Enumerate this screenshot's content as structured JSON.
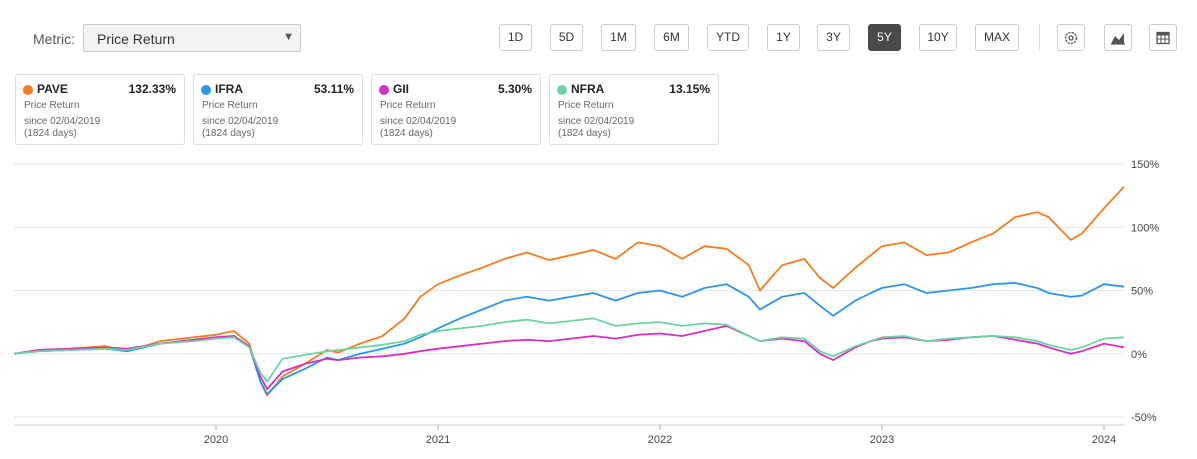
{
  "metric": {
    "label": "Metric:",
    "value": "Price Return"
  },
  "ranges": [
    "1D",
    "5D",
    "1M",
    "6M",
    "YTD",
    "1Y",
    "3Y",
    "5Y",
    "10Y",
    "MAX"
  ],
  "active_range": "5Y",
  "icons": [
    "gear-icon",
    "area-chart-icon",
    "table-icon"
  ],
  "legend": [
    {
      "ticker": "PAVE",
      "ret": "132.33%",
      "sub": "Price Return",
      "since": "since 02/04/2019",
      "days": "(1824 days)",
      "color": "#f57c1f"
    },
    {
      "ticker": "IFRA",
      "ret": "53.11%",
      "sub": "Price Return",
      "since": "since 02/04/2019",
      "days": "(1824 days)",
      "color": "#2b95e9"
    },
    {
      "ticker": "GII",
      "ret": "5.30%",
      "sub": "Price Return",
      "since": "since 02/04/2019",
      "days": "(1824 days)",
      "color": "#d630c4"
    },
    {
      "ticker": "NFRA",
      "ret": "13.15%",
      "sub": "Price Return",
      "since": "since 02/04/2019",
      "days": "(1824 days)",
      "color": "#6cd3a0"
    }
  ],
  "chart_data": {
    "type": "line",
    "ylim": [
      -50,
      150
    ],
    "yticks": [
      150,
      100,
      50,
      0,
      -50
    ],
    "ytick_labels": [
      "150%",
      "100%",
      "50%",
      "0%",
      "-50%"
    ],
    "xlim": [
      2019.09,
      2024.09
    ],
    "xticks": [
      2020,
      2021,
      2022,
      2023,
      2024
    ],
    "xtick_labels": [
      "2020",
      "2021",
      "2022",
      "2023",
      "2024"
    ],
    "grid": "horizontal",
    "series": [
      {
        "name": "PAVE",
        "color": "#f57c1f",
        "points": [
          [
            2019.09,
            0
          ],
          [
            2019.2,
            3
          ],
          [
            2019.35,
            4
          ],
          [
            2019.5,
            6
          ],
          [
            2019.6,
            2
          ],
          [
            2019.75,
            10
          ],
          [
            2019.9,
            13
          ],
          [
            2020.0,
            15
          ],
          [
            2020.08,
            18
          ],
          [
            2020.15,
            8
          ],
          [
            2020.2,
            -22
          ],
          [
            2020.23,
            -33
          ],
          [
            2020.3,
            -18
          ],
          [
            2020.4,
            -8
          ],
          [
            2020.5,
            3
          ],
          [
            2020.55,
            1
          ],
          [
            2020.65,
            8
          ],
          [
            2020.75,
            14
          ],
          [
            2020.85,
            28
          ],
          [
            2020.92,
            45
          ],
          [
            2021.0,
            55
          ],
          [
            2021.1,
            62
          ],
          [
            2021.2,
            68
          ],
          [
            2021.3,
            75
          ],
          [
            2021.4,
            80
          ],
          [
            2021.5,
            74
          ],
          [
            2021.6,
            78
          ],
          [
            2021.7,
            82
          ],
          [
            2021.8,
            75
          ],
          [
            2021.9,
            88
          ],
          [
            2022.0,
            85
          ],
          [
            2022.1,
            75
          ],
          [
            2022.2,
            85
          ],
          [
            2022.3,
            83
          ],
          [
            2022.4,
            70
          ],
          [
            2022.45,
            50
          ],
          [
            2022.55,
            70
          ],
          [
            2022.65,
            75
          ],
          [
            2022.72,
            60
          ],
          [
            2022.78,
            52
          ],
          [
            2022.88,
            68
          ],
          [
            2022.95,
            78
          ],
          [
            2023.0,
            85
          ],
          [
            2023.1,
            88
          ],
          [
            2023.2,
            78
          ],
          [
            2023.3,
            80
          ],
          [
            2023.4,
            88
          ],
          [
            2023.5,
            95
          ],
          [
            2023.6,
            108
          ],
          [
            2023.7,
            112
          ],
          [
            2023.75,
            108
          ],
          [
            2023.85,
            90
          ],
          [
            2023.9,
            95
          ],
          [
            2024.0,
            115
          ],
          [
            2024.09,
            132
          ]
        ]
      },
      {
        "name": "IFRA",
        "color": "#2b95e9",
        "points": [
          [
            2019.09,
            0
          ],
          [
            2019.2,
            2
          ],
          [
            2019.35,
            3
          ],
          [
            2019.5,
            4
          ],
          [
            2019.6,
            2
          ],
          [
            2019.75,
            8
          ],
          [
            2019.9,
            11
          ],
          [
            2020.0,
            13
          ],
          [
            2020.08,
            14
          ],
          [
            2020.15,
            6
          ],
          [
            2020.2,
            -22
          ],
          [
            2020.23,
            -32
          ],
          [
            2020.3,
            -20
          ],
          [
            2020.4,
            -12
          ],
          [
            2020.5,
            -3
          ],
          [
            2020.55,
            -5
          ],
          [
            2020.65,
            0
          ],
          [
            2020.75,
            4
          ],
          [
            2020.85,
            8
          ],
          [
            2020.92,
            13
          ],
          [
            2021.0,
            20
          ],
          [
            2021.1,
            28
          ],
          [
            2021.2,
            35
          ],
          [
            2021.3,
            42
          ],
          [
            2021.4,
            45
          ],
          [
            2021.5,
            42
          ],
          [
            2021.6,
            45
          ],
          [
            2021.7,
            48
          ],
          [
            2021.8,
            42
          ],
          [
            2021.9,
            48
          ],
          [
            2022.0,
            50
          ],
          [
            2022.1,
            45
          ],
          [
            2022.2,
            52
          ],
          [
            2022.3,
            55
          ],
          [
            2022.4,
            45
          ],
          [
            2022.45,
            35
          ],
          [
            2022.55,
            45
          ],
          [
            2022.65,
            48
          ],
          [
            2022.72,
            38
          ],
          [
            2022.78,
            30
          ],
          [
            2022.88,
            42
          ],
          [
            2022.95,
            48
          ],
          [
            2023.0,
            52
          ],
          [
            2023.1,
            55
          ],
          [
            2023.2,
            48
          ],
          [
            2023.3,
            50
          ],
          [
            2023.4,
            52
          ],
          [
            2023.5,
            55
          ],
          [
            2023.6,
            56
          ],
          [
            2023.7,
            52
          ],
          [
            2023.75,
            48
          ],
          [
            2023.85,
            45
          ],
          [
            2023.9,
            46
          ],
          [
            2024.0,
            55
          ],
          [
            2024.09,
            53
          ]
        ]
      },
      {
        "name": "GII",
        "color": "#d630c4",
        "points": [
          [
            2019.09,
            0
          ],
          [
            2019.2,
            3
          ],
          [
            2019.35,
            4
          ],
          [
            2019.5,
            5
          ],
          [
            2019.6,
            4
          ],
          [
            2019.75,
            8
          ],
          [
            2019.9,
            11
          ],
          [
            2020.0,
            13
          ],
          [
            2020.08,
            14
          ],
          [
            2020.15,
            6
          ],
          [
            2020.2,
            -18
          ],
          [
            2020.23,
            -28
          ],
          [
            2020.3,
            -14
          ],
          [
            2020.4,
            -8
          ],
          [
            2020.5,
            -4
          ],
          [
            2020.55,
            -5
          ],
          [
            2020.65,
            -3
          ],
          [
            2020.75,
            -2
          ],
          [
            2020.85,
            0
          ],
          [
            2020.92,
            2
          ],
          [
            2021.0,
            4
          ],
          [
            2021.1,
            6
          ],
          [
            2021.2,
            8
          ],
          [
            2021.3,
            10
          ],
          [
            2021.4,
            11
          ],
          [
            2021.5,
            10
          ],
          [
            2021.6,
            12
          ],
          [
            2021.7,
            14
          ],
          [
            2021.8,
            12
          ],
          [
            2021.9,
            15
          ],
          [
            2022.0,
            16
          ],
          [
            2022.1,
            14
          ],
          [
            2022.2,
            18
          ],
          [
            2022.3,
            22
          ],
          [
            2022.4,
            14
          ],
          [
            2022.45,
            10
          ],
          [
            2022.55,
            12
          ],
          [
            2022.65,
            10
          ],
          [
            2022.72,
            0
          ],
          [
            2022.78,
            -5
          ],
          [
            2022.88,
            5
          ],
          [
            2022.95,
            10
          ],
          [
            2023.0,
            12
          ],
          [
            2023.1,
            13
          ],
          [
            2023.2,
            10
          ],
          [
            2023.3,
            11
          ],
          [
            2023.4,
            13
          ],
          [
            2023.5,
            14
          ],
          [
            2023.6,
            11
          ],
          [
            2023.7,
            8
          ],
          [
            2023.75,
            5
          ],
          [
            2023.85,
            0
          ],
          [
            2023.9,
            2
          ],
          [
            2024.0,
            8
          ],
          [
            2024.09,
            5
          ]
        ]
      },
      {
        "name": "NFRA",
        "color": "#6cd3a0",
        "points": [
          [
            2019.09,
            0
          ],
          [
            2019.2,
            2
          ],
          [
            2019.35,
            3
          ],
          [
            2019.5,
            4
          ],
          [
            2019.6,
            3
          ],
          [
            2019.75,
            8
          ],
          [
            2019.9,
            10
          ],
          [
            2020.0,
            12
          ],
          [
            2020.08,
            13
          ],
          [
            2020.15,
            5
          ],
          [
            2020.2,
            -15
          ],
          [
            2020.23,
            -22
          ],
          [
            2020.3,
            -4
          ],
          [
            2020.4,
            -1
          ],
          [
            2020.5,
            2
          ],
          [
            2020.55,
            3
          ],
          [
            2020.65,
            5
          ],
          [
            2020.75,
            7
          ],
          [
            2020.85,
            10
          ],
          [
            2020.92,
            15
          ],
          [
            2021.0,
            18
          ],
          [
            2021.1,
            20
          ],
          [
            2021.2,
            22
          ],
          [
            2021.3,
            25
          ],
          [
            2021.4,
            27
          ],
          [
            2021.5,
            24
          ],
          [
            2021.6,
            26
          ],
          [
            2021.7,
            28
          ],
          [
            2021.8,
            22
          ],
          [
            2021.9,
            24
          ],
          [
            2022.0,
            25
          ],
          [
            2022.1,
            22
          ],
          [
            2022.2,
            24
          ],
          [
            2022.3,
            23
          ],
          [
            2022.4,
            14
          ],
          [
            2022.45,
            10
          ],
          [
            2022.55,
            13
          ],
          [
            2022.65,
            12
          ],
          [
            2022.72,
            2
          ],
          [
            2022.78,
            -2
          ],
          [
            2022.88,
            6
          ],
          [
            2022.95,
            10
          ],
          [
            2023.0,
            13
          ],
          [
            2023.1,
            14
          ],
          [
            2023.2,
            10
          ],
          [
            2023.3,
            12
          ],
          [
            2023.4,
            13
          ],
          [
            2023.5,
            14
          ],
          [
            2023.6,
            13
          ],
          [
            2023.7,
            10
          ],
          [
            2023.75,
            7
          ],
          [
            2023.85,
            3
          ],
          [
            2023.9,
            5
          ],
          [
            2024.0,
            12
          ],
          [
            2024.09,
            13
          ]
        ]
      }
    ]
  }
}
